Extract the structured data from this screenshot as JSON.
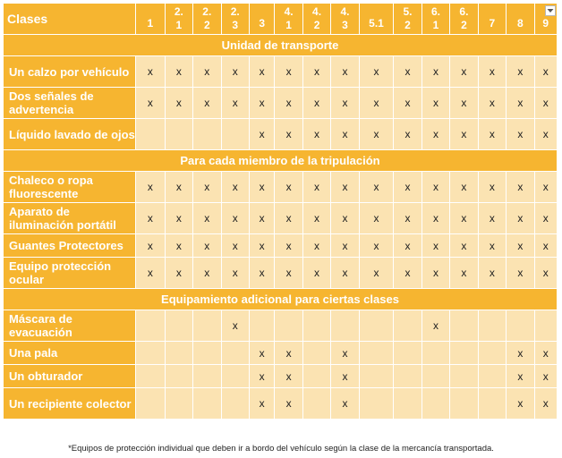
{
  "header": {
    "label": "Clases",
    "classes": [
      {
        "top": "1",
        "bottom": ""
      },
      {
        "top": "2.",
        "bottom": "1"
      },
      {
        "top": "2.",
        "bottom": "2"
      },
      {
        "top": "2.",
        "bottom": "3"
      },
      {
        "top": "3",
        "bottom": ""
      },
      {
        "top": "4.",
        "bottom": "1"
      },
      {
        "top": "4.",
        "bottom": "2"
      },
      {
        "top": "4.",
        "bottom": "3"
      },
      {
        "top": "5.1",
        "bottom": ""
      },
      {
        "top": "5.",
        "bottom": "2"
      },
      {
        "top": "6.",
        "bottom": "1"
      },
      {
        "top": "6.",
        "bottom": "2"
      },
      {
        "top": "7",
        "bottom": ""
      },
      {
        "top": "8",
        "bottom": ""
      },
      {
        "top": "9",
        "bottom": ""
      }
    ],
    "filter_icon": "dropdown-filter-icon"
  },
  "sections": [
    {
      "title": "Unidad de transporte",
      "rows": [
        {
          "label": "Un calzo por vehículo",
          "marks": [
            "x",
            "x",
            "x",
            "x",
            "x",
            "x",
            "x",
            "x",
            "x",
            "x",
            "x",
            "x",
            "x",
            "x",
            "x"
          ]
        },
        {
          "label": "Dos señales de advertencia",
          "marks": [
            "x",
            "x",
            "x",
            "x",
            "x",
            "x",
            "x",
            "x",
            "x",
            "x",
            "x",
            "x",
            "x",
            "x",
            "x"
          ]
        },
        {
          "label": "Líquido lavado de ojos",
          "marks": [
            "",
            "",
            "",
            "",
            "x",
            "x",
            "x",
            "x",
            "x",
            "x",
            "x",
            "x",
            "x",
            "x",
            "x"
          ]
        }
      ]
    },
    {
      "title": "Para cada miembro de la tripulación",
      "rows": [
        {
          "label": "Chaleco o ropa fluorescente",
          "marks": [
            "x",
            "x",
            "x",
            "x",
            "x",
            "x",
            "x",
            "x",
            "x",
            "x",
            "x",
            "x",
            "x",
            "x",
            "x"
          ]
        },
        {
          "label": "Aparato de iluminación portátil",
          "marks": [
            "x",
            "x",
            "x",
            "x",
            "x",
            "x",
            "x",
            "x",
            "x",
            "x",
            "x",
            "x",
            "x",
            "x",
            "x"
          ]
        },
        {
          "label": "Guantes Protectores",
          "marks": [
            "x",
            "x",
            "x",
            "x",
            "x",
            "x",
            "x",
            "x",
            "x",
            "x",
            "x",
            "x",
            "x",
            "x",
            "x"
          ]
        },
        {
          "label": "Equipo protección ocular",
          "marks": [
            "x",
            "x",
            "x",
            "x",
            "x",
            "x",
            "x",
            "x",
            "x",
            "x",
            "x",
            "x",
            "x",
            "x",
            "x"
          ]
        }
      ]
    },
    {
      "title": "Equipamiento adicional para ciertas clases",
      "rows": [
        {
          "label": "Máscara de evacuación",
          "marks": [
            "",
            "",
            "",
            "x",
            "",
            "",
            "",
            "",
            "",
            "",
            "x",
            "",
            "",
            "",
            ""
          ]
        },
        {
          "label": "Una pala",
          "marks": [
            "",
            "",
            "",
            "",
            "x",
            "x",
            "",
            "x",
            "",
            "",
            "",
            "",
            "",
            "x",
            "x"
          ]
        },
        {
          "label": "Un obturador",
          "marks": [
            "",
            "",
            "",
            "",
            "x",
            "x",
            "",
            "x",
            "",
            "",
            "",
            "",
            "",
            "x",
            "x"
          ]
        },
        {
          "label": "Un recipiente colector",
          "marks": [
            "",
            "",
            "",
            "",
            "x",
            "x",
            "",
            "x",
            "",
            "",
            "",
            "",
            "",
            "x",
            "x"
          ]
        }
      ]
    }
  ],
  "footnote": "*Equipos de protección individual que deben ir a bordo del vehículo según la clase de la mercancía transportada."
}
